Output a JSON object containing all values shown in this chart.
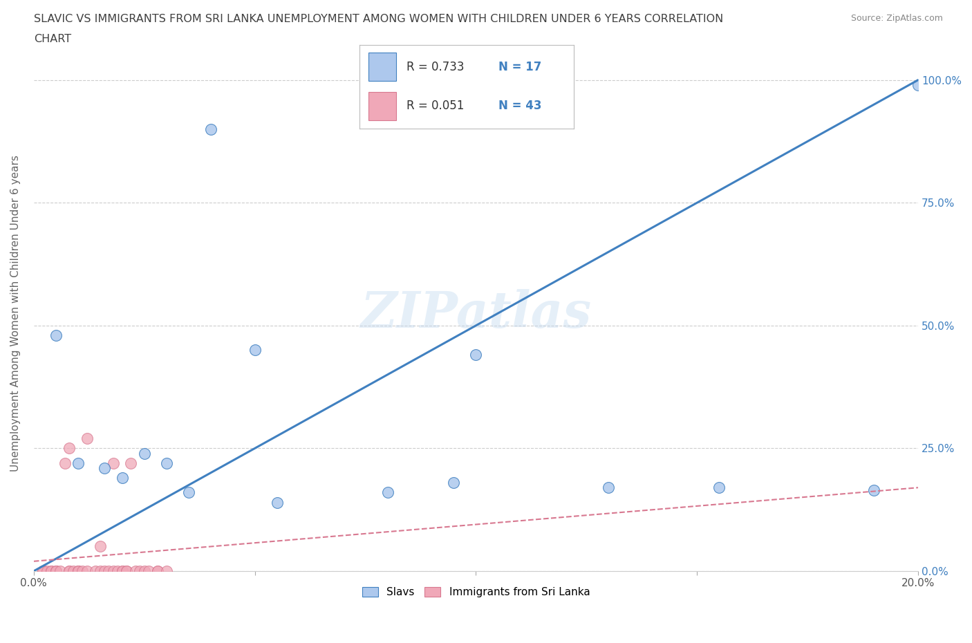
{
  "title_line1": "SLAVIC VS IMMIGRANTS FROM SRI LANKA UNEMPLOYMENT AMONG WOMEN WITH CHILDREN UNDER 6 YEARS CORRELATION",
  "title_line2": "CHART",
  "source": "Source: ZipAtlas.com",
  "ylabel": "Unemployment Among Women with Children Under 6 years",
  "watermark": "ZIPatlas",
  "legend1_R": "0.733",
  "legend1_N": "17",
  "legend2_R": "0.051",
  "legend2_N": "43",
  "slavs_color": "#adc8ed",
  "srilanka_color": "#f0a8b8",
  "slavs_line_color": "#4080c0",
  "srilanka_line_color": "#d87890",
  "slavs_scatter_x": [
    0.04,
    0.005,
    0.01,
    0.025,
    0.02,
    0.03,
    0.035,
    0.05,
    0.055,
    0.08,
    0.095,
    0.1,
    0.13,
    0.155,
    0.19,
    0.016,
    0.2
  ],
  "slavs_scatter_y": [
    0.9,
    0.48,
    0.22,
    0.24,
    0.19,
    0.22,
    0.16,
    0.45,
    0.14,
    0.16,
    0.18,
    0.44,
    0.17,
    0.17,
    0.165,
    0.21,
    0.99
  ],
  "srilanka_scatter_x": [
    0.002,
    0.002,
    0.002,
    0.002,
    0.002,
    0.003,
    0.004,
    0.004,
    0.005,
    0.005,
    0.005,
    0.006,
    0.007,
    0.008,
    0.008,
    0.008,
    0.009,
    0.01,
    0.01,
    0.01,
    0.011,
    0.012,
    0.012,
    0.014,
    0.015,
    0.015,
    0.016,
    0.017,
    0.018,
    0.018,
    0.019,
    0.02,
    0.02,
    0.021,
    0.021,
    0.022,
    0.023,
    0.024,
    0.025,
    0.026,
    0.028,
    0.028,
    0.03
  ],
  "srilanka_scatter_y": [
    0.0,
    0.0,
    0.0,
    0.0,
    0.0,
    0.0,
    0.0,
    0.0,
    0.0,
    0.0,
    0.0,
    0.0,
    0.22,
    0.0,
    0.0,
    0.25,
    0.0,
    0.0,
    0.0,
    0.0,
    0.0,
    0.27,
    0.0,
    0.0,
    0.0,
    0.05,
    0.0,
    0.0,
    0.22,
    0.0,
    0.0,
    0.0,
    0.0,
    0.0,
    0.0,
    0.22,
    0.0,
    0.0,
    0.0,
    0.0,
    0.0,
    0.0,
    0.0
  ],
  "slavs_regline_x": [
    0.0,
    0.2
  ],
  "slavs_regline_y": [
    0.0,
    1.0
  ],
  "srilanka_regline_x": [
    0.0,
    0.2
  ],
  "srilanka_regline_y": [
    0.02,
    0.17
  ],
  "xmin": 0.0,
  "xmax": 0.2,
  "ymin": 0.0,
  "ymax": 1.05,
  "background_color": "#ffffff",
  "grid_color": "#cccccc",
  "title_color": "#404040",
  "legend_label1": "Slavs",
  "legend_label2": "Immigrants from Sri Lanka"
}
